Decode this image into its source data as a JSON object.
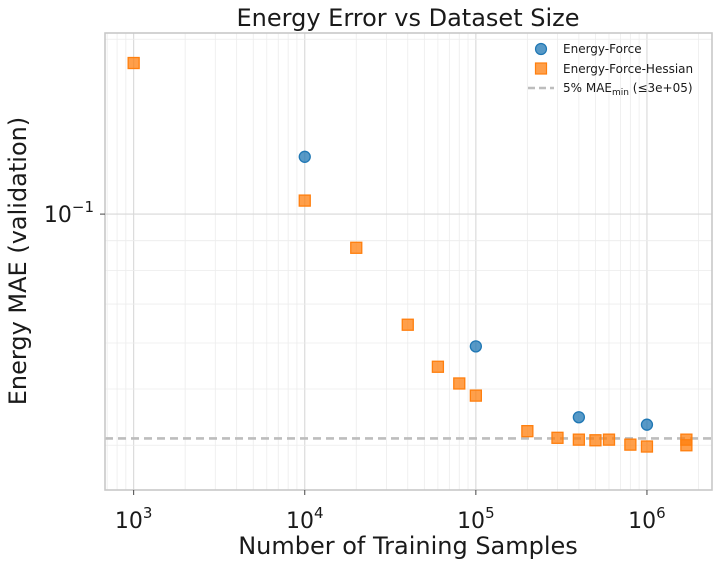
{
  "chart_data": {
    "type": "scatter",
    "title": "Energy Error vs Dataset Size",
    "xlabel": "Number of Training Samples",
    "ylabel": "Energy MAE (validation)",
    "xscale": "log",
    "yscale": "log",
    "xlim": [
      680,
      2400000
    ],
    "ylim": [
      0.0335,
      0.205
    ],
    "x_ticks": [
      {
        "value": 1000,
        "base": "10",
        "exp": "3"
      },
      {
        "value": 10000,
        "base": "10",
        "exp": "4"
      },
      {
        "value": 100000,
        "base": "10",
        "exp": "5"
      },
      {
        "value": 1000000,
        "base": "10",
        "exp": "6"
      }
    ],
    "y_ticks": [
      {
        "value": 0.1,
        "base": "10",
        "exp": "−1"
      }
    ],
    "grid": true,
    "legend_position": "top-right",
    "series": [
      {
        "name": "Energy-Force",
        "marker": "circle",
        "color": "#1f77b4",
        "x": [
          10000,
          100000,
          400000,
          1000000
        ],
        "y": [
          0.1255,
          0.0592,
          0.0447,
          0.0434
        ]
      },
      {
        "name": "Energy-Force-Hessian",
        "marker": "square",
        "color": "#ff7f0e",
        "x": [
          1000,
          10000,
          20000,
          40000,
          60000,
          80000,
          100000,
          200000,
          300000,
          400000,
          500000,
          600000,
          800000,
          1000000,
          1700000,
          1700000
        ],
        "y": [
          0.182,
          0.1055,
          0.0875,
          0.0645,
          0.0546,
          0.0511,
          0.0487,
          0.0423,
          0.0412,
          0.0409,
          0.0408,
          0.0409,
          0.0401,
          0.0398,
          0.0409,
          0.04
        ]
      }
    ],
    "reference_line": {
      "label_prefix": "5% MAE",
      "label_sub": "min",
      "label_suffix": " (≤3e+05)",
      "y": 0.0411,
      "color": "#bdbdbd",
      "style": "dashed"
    }
  }
}
